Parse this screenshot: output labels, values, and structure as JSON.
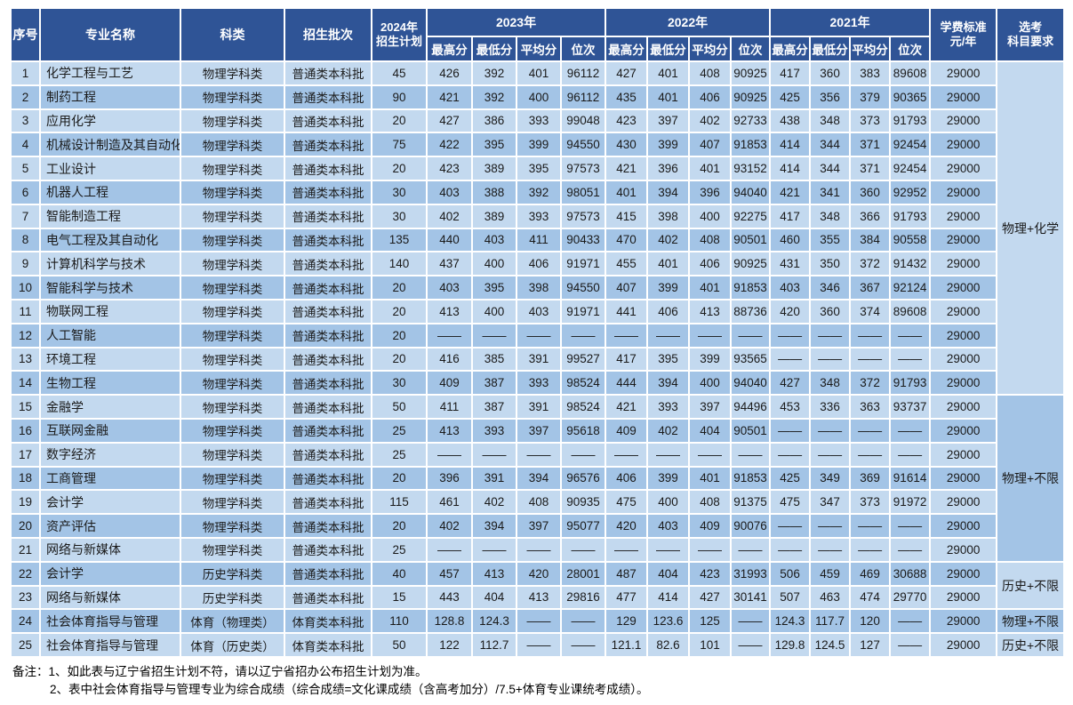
{
  "colors": {
    "header_bg": "#2F5496",
    "row_light": "#C3D9EF",
    "row_dark": "#A3C4E6",
    "header_text": "#FFFFFF"
  },
  "table": {
    "header": {
      "no": "序号",
      "major": "专业名称",
      "category": "科类",
      "batch": "招生批次",
      "plan2024": "2024年\n招生计划",
      "year_groups": [
        "2023年",
        "2022年",
        "2021年"
      ],
      "sub_columns": [
        "最高分",
        "最低分",
        "平均分",
        "位次"
      ],
      "tuition": "学费标准\n元/年",
      "subjects": "选考\n科目要求"
    },
    "rows": [
      {
        "no": "1",
        "major": "化学工程与工艺",
        "category": "物理学科类",
        "batch": "普通类本科批",
        "plan": "45",
        "y2023": [
          "426",
          "392",
          "401",
          "96112"
        ],
        "y2022": [
          "427",
          "401",
          "408",
          "90925"
        ],
        "y2021": [
          "417",
          "360",
          "383",
          "89608"
        ],
        "tuition": "29000"
      },
      {
        "no": "2",
        "major": "制药工程",
        "category": "物理学科类",
        "batch": "普通类本科批",
        "plan": "90",
        "y2023": [
          "421",
          "392",
          "400",
          "96112"
        ],
        "y2022": [
          "435",
          "401",
          "406",
          "90925"
        ],
        "y2021": [
          "425",
          "356",
          "379",
          "90365"
        ],
        "tuition": "29000"
      },
      {
        "no": "3",
        "major": "应用化学",
        "category": "物理学科类",
        "batch": "普通类本科批",
        "plan": "20",
        "y2023": [
          "427",
          "386",
          "393",
          "99048"
        ],
        "y2022": [
          "423",
          "397",
          "402",
          "92733"
        ],
        "y2021": [
          "438",
          "348",
          "373",
          "91793"
        ],
        "tuition": "29000"
      },
      {
        "no": "4",
        "major": "机械设计制造及其自动化",
        "category": "物理学科类",
        "batch": "普通类本科批",
        "plan": "75",
        "y2023": [
          "422",
          "395",
          "399",
          "94550"
        ],
        "y2022": [
          "430",
          "399",
          "407",
          "91853"
        ],
        "y2021": [
          "414",
          "344",
          "371",
          "92454"
        ],
        "tuition": "29000"
      },
      {
        "no": "5",
        "major": "工业设计",
        "category": "物理学科类",
        "batch": "普通类本科批",
        "plan": "20",
        "y2023": [
          "423",
          "389",
          "395",
          "97573"
        ],
        "y2022": [
          "421",
          "396",
          "401",
          "93152"
        ],
        "y2021": [
          "414",
          "344",
          "371",
          "92454"
        ],
        "tuition": "29000"
      },
      {
        "no": "6",
        "major": "机器人工程",
        "category": "物理学科类",
        "batch": "普通类本科批",
        "plan": "30",
        "y2023": [
          "403",
          "388",
          "392",
          "98051"
        ],
        "y2022": [
          "401",
          "394",
          "396",
          "94040"
        ],
        "y2021": [
          "421",
          "341",
          "360",
          "92952"
        ],
        "tuition": "29000"
      },
      {
        "no": "7",
        "major": "智能制造工程",
        "category": "物理学科类",
        "batch": "普通类本科批",
        "plan": "30",
        "y2023": [
          "402",
          "389",
          "393",
          "97573"
        ],
        "y2022": [
          "415",
          "398",
          "400",
          "92275"
        ],
        "y2021": [
          "417",
          "348",
          "366",
          "91793"
        ],
        "tuition": "29000"
      },
      {
        "no": "8",
        "major": "电气工程及其自动化",
        "category": "物理学科类",
        "batch": "普通类本科批",
        "plan": "135",
        "y2023": [
          "440",
          "403",
          "411",
          "90433"
        ],
        "y2022": [
          "470",
          "402",
          "408",
          "90501"
        ],
        "y2021": [
          "460",
          "355",
          "384",
          "90558"
        ],
        "tuition": "29000"
      },
      {
        "no": "9",
        "major": "计算机科学与技术",
        "category": "物理学科类",
        "batch": "普通类本科批",
        "plan": "140",
        "y2023": [
          "437",
          "400",
          "406",
          "91971"
        ],
        "y2022": [
          "455",
          "401",
          "406",
          "90925"
        ],
        "y2021": [
          "431",
          "350",
          "372",
          "91432"
        ],
        "tuition": "29000"
      },
      {
        "no": "10",
        "major": "智能科学与技术",
        "category": "物理学科类",
        "batch": "普通类本科批",
        "plan": "20",
        "y2023": [
          "403",
          "395",
          "398",
          "94550"
        ],
        "y2022": [
          "407",
          "399",
          "401",
          "91853"
        ],
        "y2021": [
          "403",
          "346",
          "367",
          "92124"
        ],
        "tuition": "29000"
      },
      {
        "no": "11",
        "major": "物联网工程",
        "category": "物理学科类",
        "batch": "普通类本科批",
        "plan": "20",
        "y2023": [
          "413",
          "400",
          "403",
          "91971"
        ],
        "y2022": [
          "441",
          "406",
          "413",
          "88736"
        ],
        "y2021": [
          "420",
          "360",
          "374",
          "89608"
        ],
        "tuition": "29000"
      },
      {
        "no": "12",
        "major": "人工智能",
        "category": "物理学科类",
        "batch": "普通类本科批",
        "plan": "20",
        "y2023": [
          "——",
          "——",
          "——",
          "——"
        ],
        "y2022": [
          "——",
          "——",
          "——",
          "——"
        ],
        "y2021": [
          "——",
          "——",
          "——",
          "——"
        ],
        "tuition": "29000"
      },
      {
        "no": "13",
        "major": "环境工程",
        "category": "物理学科类",
        "batch": "普通类本科批",
        "plan": "20",
        "y2023": [
          "416",
          "385",
          "391",
          "99527"
        ],
        "y2022": [
          "417",
          "395",
          "399",
          "93565"
        ],
        "y2021": [
          "——",
          "——",
          "——",
          "——"
        ],
        "tuition": "29000"
      },
      {
        "no": "14",
        "major": "生物工程",
        "category": "物理学科类",
        "batch": "普通类本科批",
        "plan": "30",
        "y2023": [
          "409",
          "387",
          "393",
          "98524"
        ],
        "y2022": [
          "444",
          "394",
          "400",
          "94040"
        ],
        "y2021": [
          "427",
          "348",
          "372",
          "91793"
        ],
        "tuition": "29000"
      },
      {
        "no": "15",
        "major": "金融学",
        "category": "物理学科类",
        "batch": "普通类本科批",
        "plan": "50",
        "y2023": [
          "411",
          "387",
          "391",
          "98524"
        ],
        "y2022": [
          "421",
          "393",
          "397",
          "94496"
        ],
        "y2021": [
          "453",
          "336",
          "363",
          "93737"
        ],
        "tuition": "29000"
      },
      {
        "no": "16",
        "major": "互联网金融",
        "category": "物理学科类",
        "batch": "普通类本科批",
        "plan": "25",
        "y2023": [
          "413",
          "393",
          "397",
          "95618"
        ],
        "y2022": [
          "409",
          "402",
          "404",
          "90501"
        ],
        "y2021": [
          "——",
          "——",
          "——",
          "——"
        ],
        "tuition": "29000"
      },
      {
        "no": "17",
        "major": "数字经济",
        "category": "物理学科类",
        "batch": "普通类本科批",
        "plan": "25",
        "y2023": [
          "——",
          "——",
          "——",
          "——"
        ],
        "y2022": [
          "——",
          "——",
          "——",
          "——"
        ],
        "y2021": [
          "——",
          "——",
          "——",
          "——"
        ],
        "tuition": "29000"
      },
      {
        "no": "18",
        "major": "工商管理",
        "category": "物理学科类",
        "batch": "普通类本科批",
        "plan": "20",
        "y2023": [
          "396",
          "391",
          "394",
          "96576"
        ],
        "y2022": [
          "406",
          "399",
          "401",
          "91853"
        ],
        "y2021": [
          "425",
          "349",
          "369",
          "91614"
        ],
        "tuition": "29000"
      },
      {
        "no": "19",
        "major": "会计学",
        "category": "物理学科类",
        "batch": "普通类本科批",
        "plan": "115",
        "y2023": [
          "461",
          "402",
          "408",
          "90935"
        ],
        "y2022": [
          "475",
          "400",
          "408",
          "91375"
        ],
        "y2021": [
          "475",
          "347",
          "373",
          "91972"
        ],
        "tuition": "29000"
      },
      {
        "no": "20",
        "major": "资产评估",
        "category": "物理学科类",
        "batch": "普通类本科批",
        "plan": "20",
        "y2023": [
          "402",
          "394",
          "397",
          "95077"
        ],
        "y2022": [
          "420",
          "403",
          "409",
          "90076"
        ],
        "y2021": [
          "——",
          "——",
          "——",
          "——"
        ],
        "tuition": "29000"
      },
      {
        "no": "21",
        "major": "网络与新媒体",
        "category": "物理学科类",
        "batch": "普通类本科批",
        "plan": "25",
        "y2023": [
          "——",
          "——",
          "——",
          "——"
        ],
        "y2022": [
          "——",
          "——",
          "——",
          "——"
        ],
        "y2021": [
          "——",
          "——",
          "——",
          "——"
        ],
        "tuition": "29000"
      },
      {
        "no": "22",
        "major": "会计学",
        "category": "历史学科类",
        "batch": "普通类本科批",
        "plan": "40",
        "y2023": [
          "457",
          "413",
          "420",
          "28001"
        ],
        "y2022": [
          "487",
          "404",
          "423",
          "31993"
        ],
        "y2021": [
          "506",
          "459",
          "469",
          "30688"
        ],
        "tuition": "29000"
      },
      {
        "no": "23",
        "major": "网络与新媒体",
        "category": "历史学科类",
        "batch": "普通类本科批",
        "plan": "15",
        "y2023": [
          "443",
          "404",
          "413",
          "29816"
        ],
        "y2022": [
          "477",
          "414",
          "427",
          "30141"
        ],
        "y2021": [
          "507",
          "463",
          "474",
          "29770"
        ],
        "tuition": "29000"
      },
      {
        "no": "24",
        "major": "社会体育指导与管理",
        "category": "体育（物理类）",
        "batch": "体育类本科批",
        "plan": "110",
        "y2023": [
          "128.8",
          "124.3",
          "——",
          "——"
        ],
        "y2022": [
          "129",
          "123.6",
          "125",
          "——"
        ],
        "y2021": [
          "124.3",
          "117.7",
          "120",
          "——"
        ],
        "tuition": "29000"
      },
      {
        "no": "25",
        "major": "社会体育指导与管理",
        "category": "体育（历史类）",
        "batch": "体育类本科批",
        "plan": "50",
        "y2023": [
          "122",
          "112.7",
          "——",
          "——"
        ],
        "y2022": [
          "121.1",
          "82.6",
          "101",
          "——"
        ],
        "y2021": [
          "129.8",
          "124.5",
          "127",
          "——"
        ],
        "tuition": "29000"
      }
    ],
    "subject_groups": [
      {
        "label": "物理+化学",
        "rows": 14
      },
      {
        "label": "物理+不限",
        "rows": 7
      },
      {
        "label": "历史+不限",
        "rows": 2
      },
      {
        "label": "物理+不限",
        "rows": 1
      },
      {
        "label": "历史+不限",
        "rows": 1
      }
    ]
  },
  "notes": [
    "备注：1、如此表与辽宁省招生计划不符，请以辽宁省招办公布招生计划为准。",
    "2、表中社会体育指导与管理专业为综合成绩（综合成绩=文化课成绩（含高考加分）/7.5+体育专业课统考成绩）。"
  ]
}
